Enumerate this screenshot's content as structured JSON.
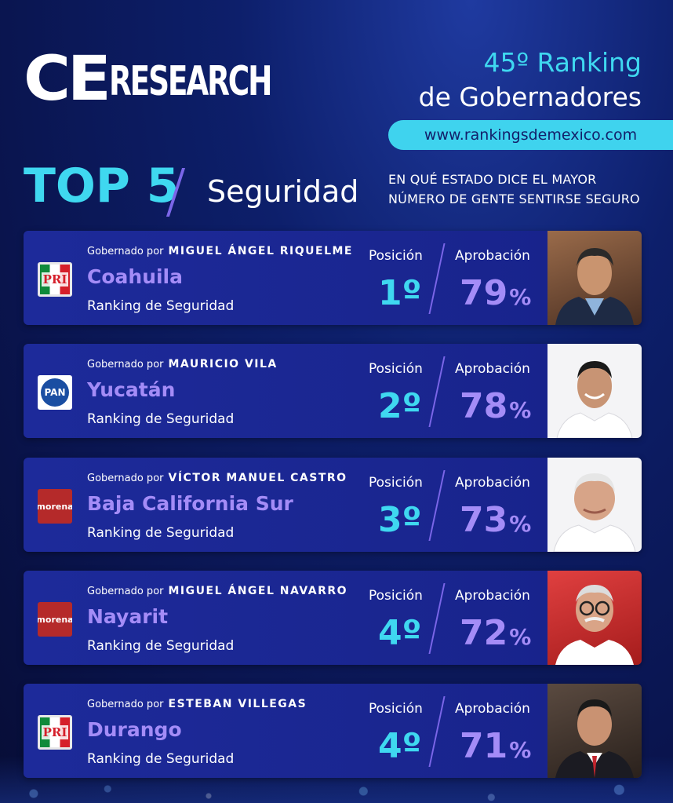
{
  "brand": {
    "ce": "CE",
    "research": "RESEARCH"
  },
  "header": {
    "subtitle": "45º Ranking",
    "title": "de Gobernadores",
    "url": "www.rankingsdemexico.com"
  },
  "section": {
    "top": "TOP 5",
    "category": "Seguridad",
    "question_line1": "EN QUÉ ESTADO DICE EL MAYOR",
    "question_line2": "NÚMERO DE GENTE SENTIRSE SEGURO"
  },
  "labels": {
    "governed_by": "Gobernado por",
    "ranking": "Ranking de Seguridad",
    "position": "Posición",
    "approval": "Aprobación"
  },
  "entries": [
    {
      "party": "PRI",
      "party_icon": "pri-logo-icon",
      "governor": "MIGUEL ÁNGEL RIQUELME",
      "state": "Coahuila",
      "position": "1º",
      "approval": "79",
      "approval_pct": 79
    },
    {
      "party": "PAN",
      "party_icon": "pan-logo-icon",
      "governor": "MAURICIO VILA",
      "state": "Yucatán",
      "position": "2º",
      "approval": "78",
      "approval_pct": 78
    },
    {
      "party": "morena",
      "party_icon": "morena-logo-icon",
      "governor": "VÍCTOR MANUEL CASTRO",
      "state": "Baja California Sur",
      "position": "3º",
      "approval": "73",
      "approval_pct": 73
    },
    {
      "party": "morena",
      "party_icon": "morena-logo-icon",
      "governor": "MIGUEL ÁNGEL NAVARRO",
      "state": "Nayarit",
      "position": "4º",
      "approval": "72",
      "approval_pct": 72
    },
    {
      "party": "PRI",
      "party_icon": "pri-logo-icon",
      "governor": "ESTEBAN VILLEGAS",
      "state": "Durango",
      "position": "4º",
      "approval": "71",
      "approval_pct": 71
    }
  ],
  "percent_sign": "%",
  "colors": {
    "cyan": "#3fd8f0",
    "violet": "#a48cf7",
    "card": "#1d2a9a",
    "background": "#0d1f6b"
  }
}
